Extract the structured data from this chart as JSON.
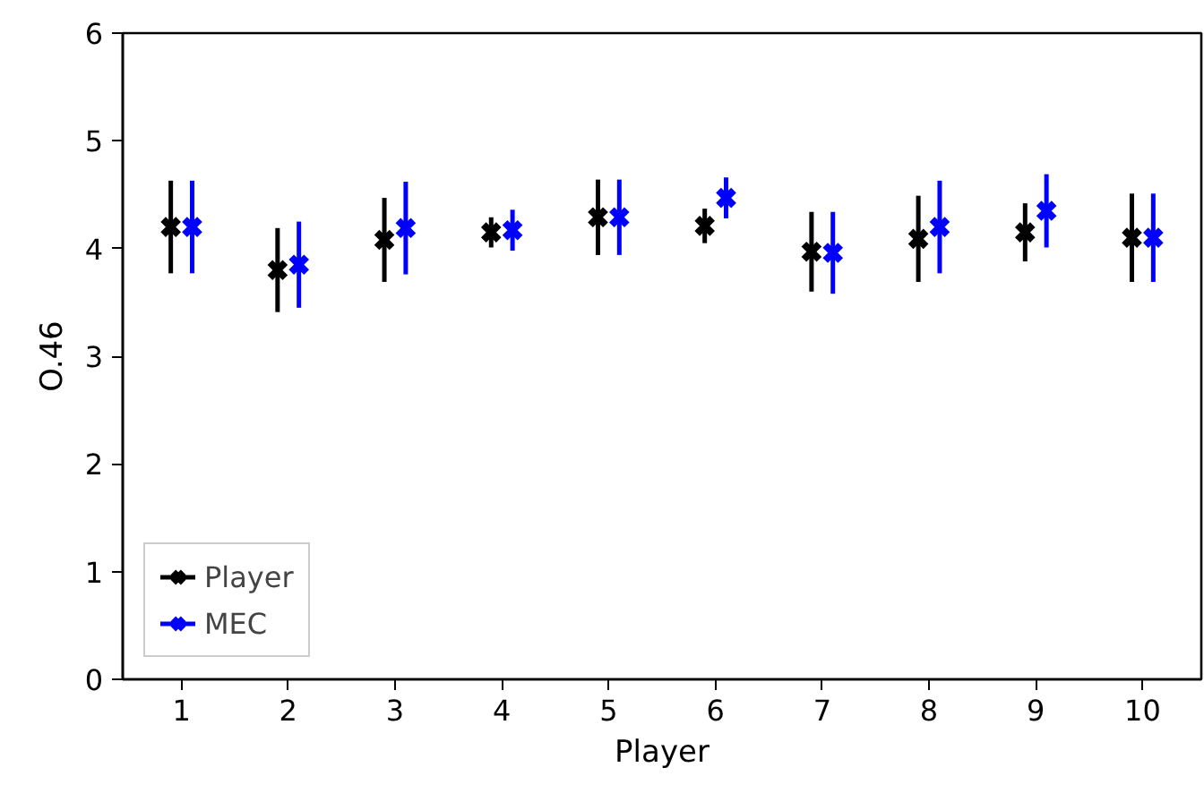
{
  "chart_data": {
    "type": "scatter",
    "xlabel": "Player",
    "ylabel": "O.46",
    "xlim": [
      0.45,
      10.55
    ],
    "xticks": [
      1,
      2,
      3,
      4,
      5,
      6,
      7,
      8,
      9,
      10
    ],
    "ylim": [
      0,
      6
    ],
    "yticks": [
      0,
      1,
      2,
      3,
      4,
      5,
      6
    ],
    "marker": "cross",
    "grid": false,
    "legend": "bottom left",
    "series": [
      {
        "name": "Player",
        "color": "#000000",
        "x": [
          0.9,
          1.9,
          2.9,
          3.9,
          4.9,
          5.9,
          6.9,
          7.9,
          8.9,
          9.9
        ],
        "values": [
          4.2,
          3.8,
          4.08,
          4.15,
          4.29,
          4.21,
          3.97,
          4.09,
          4.15,
          4.1
        ],
        "errors": [
          0.43,
          0.39,
          0.39,
          0.14,
          0.35,
          0.16,
          0.37,
          0.4,
          0.27,
          0.41
        ]
      },
      {
        "name": "MEC",
        "color": "#0000ff",
        "x": [
          1.1,
          2.1,
          3.1,
          4.1,
          5.1,
          6.1,
          7.1,
          8.1,
          9.1,
          10.1
        ],
        "values": [
          4.2,
          3.85,
          4.19,
          4.17,
          4.29,
          4.47,
          3.96,
          4.2,
          4.35,
          4.1
        ],
        "errors": [
          0.43,
          0.4,
          0.43,
          0.19,
          0.35,
          0.19,
          0.38,
          0.43,
          0.34,
          0.41
        ]
      }
    ]
  }
}
